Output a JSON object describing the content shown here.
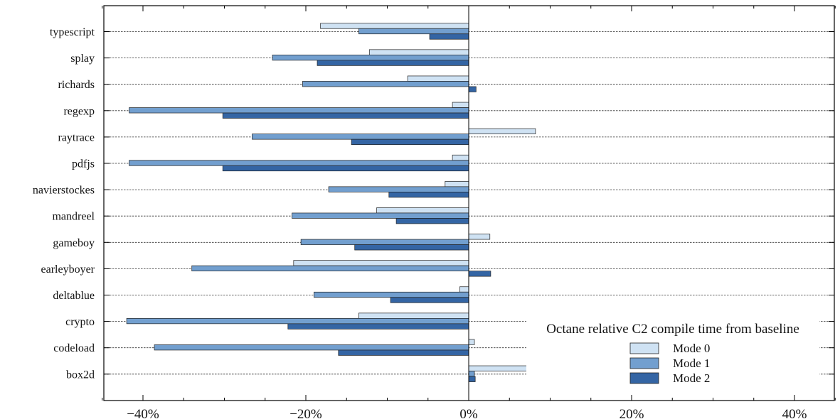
{
  "chart_data": {
    "type": "bar",
    "orientation": "horizontal",
    "categories": [
      "typescript",
      "splay",
      "richards",
      "regexp",
      "raytrace",
      "pdfjs",
      "navierstockes",
      "mandreel",
      "gameboy",
      "earleyboyer",
      "deltablue",
      "crypto",
      "codeload",
      "box2d"
    ],
    "series": [
      {
        "name": "Mode 0",
        "color": "#cfe2f3",
        "values": [
          -18.2,
          -12.2,
          -7.5,
          -2.0,
          8.2,
          -2.0,
          -2.9,
          -11.3,
          2.6,
          -21.5,
          -1.1,
          -13.5,
          0.7,
          7.4
        ]
      },
      {
        "name": "Mode 1",
        "color": "#729fcf",
        "values": [
          -13.5,
          -24.1,
          -20.4,
          -41.7,
          -26.6,
          -41.7,
          -17.2,
          -21.7,
          -20.6,
          -34.0,
          -19.0,
          -42.0,
          -38.6,
          0.7
        ]
      },
      {
        "name": "Mode 2",
        "color": "#3465a4",
        "values": [
          -4.8,
          -18.6,
          0.9,
          -30.2,
          -14.4,
          -30.2,
          -9.8,
          -8.9,
          -14.0,
          2.7,
          -9.6,
          -22.2,
          -16.0,
          0.8
        ]
      }
    ],
    "xlim": [
      -45,
      45
    ],
    "xticks": [
      "−40%",
      "−20%",
      "0%",
      "20%",
      "40%"
    ],
    "xtick_values": [
      -40,
      -20,
      0,
      20,
      40
    ],
    "grid": "horizontal dashed",
    "legend": {
      "title": "Octane relative C2 compile time from baseline",
      "placement": "lower-right"
    }
  }
}
